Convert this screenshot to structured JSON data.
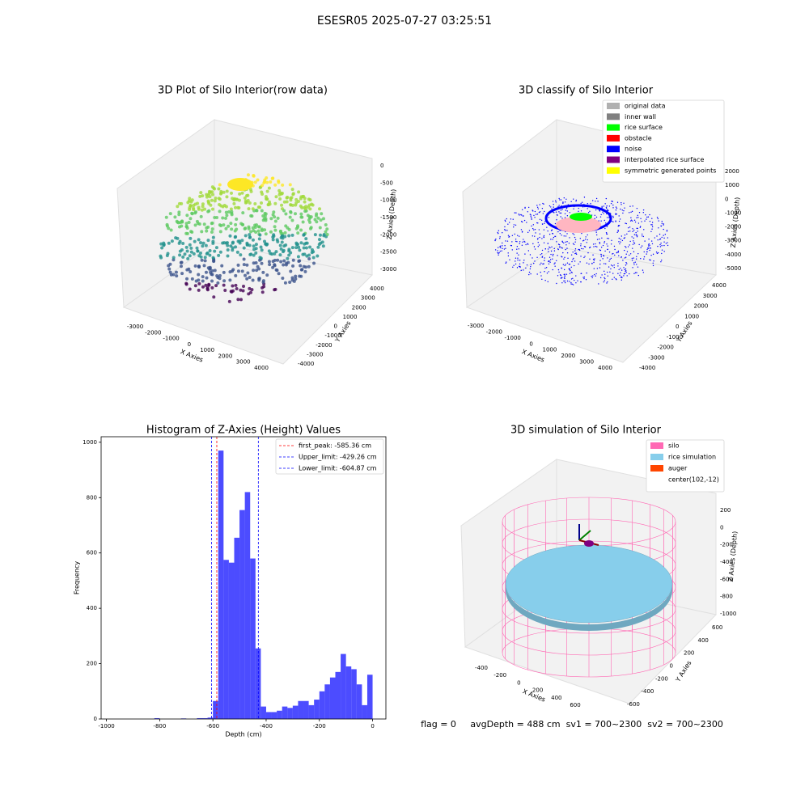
{
  "title": "ESESR05 2025-07-27 03:25:51",
  "chart_data": [
    {
      "type": "scatter3d",
      "title": "3D Plot of Silo Interior(row data)",
      "xlabel": "X Axies",
      "ylabel": "Y Axies",
      "zlabel": "Z Axies (Depth)",
      "xlim": [
        -3000,
        4000
      ],
      "xticks": [
        -3000,
        -2000,
        -1000,
        0,
        1000,
        2000,
        3000,
        4000
      ],
      "ylim": [
        -4000,
        4000
      ],
      "yticks": [
        -4000,
        -3000,
        -2000,
        -1000,
        0,
        1000,
        2000,
        3000,
        4000
      ],
      "zlim": [
        -3000,
        0
      ],
      "zticks": [
        -3000,
        -2500,
        -2000,
        -1500,
        -1000,
        -500,
        0
      ]
    },
    {
      "type": "scatter3d",
      "title": "3D classify of Silo Interior",
      "xlabel": "X Axies",
      "ylabel": "Y Axies",
      "zlabel": "Z Axies (Depth)",
      "xlim": [
        -3000,
        4000
      ],
      "xticks": [
        -3000,
        -2000,
        -1000,
        0,
        1000,
        2000,
        3000,
        4000
      ],
      "ylim": [
        -4000,
        4000
      ],
      "yticks": [
        -4000,
        -3000,
        -2000,
        -1000,
        0,
        1000,
        2000,
        3000,
        4000
      ],
      "zlim": [
        -5000,
        2000
      ],
      "zticks": [
        -5000,
        -4000,
        -3000,
        -2000,
        -1000,
        0,
        1000,
        2000
      ],
      "legend": [
        {
          "name": "original data",
          "color": "#b0b0b0"
        },
        {
          "name": "inner wall",
          "color": "#808080"
        },
        {
          "name": "rice surface",
          "color": "#00ff00"
        },
        {
          "name": "obstacle",
          "color": "#ff0000"
        },
        {
          "name": "noise",
          "color": "#0000ff"
        },
        {
          "name": "interpolated rice surface",
          "color": "#800080"
        },
        {
          "name": "symmetric generated points",
          "color": "#ffff00"
        }
      ]
    },
    {
      "type": "histogram",
      "title": "Histogram of Z-Axies (Height) Values",
      "xlabel": "Depth (cm)",
      "ylabel": "Frequency",
      "color": "#0000ff",
      "alpha": 0.7,
      "bins": [
        -1000,
        -980,
        -960,
        -940,
        -920,
        -900,
        -880,
        -860,
        -840,
        -820,
        -800,
        -780,
        -760,
        -740,
        -720,
        -700,
        -680,
        -660,
        -640,
        -620,
        -600,
        -580,
        -560,
        -540,
        -520,
        -500,
        -480,
        -460,
        -440,
        -420,
        -400,
        -380,
        -360,
        -340,
        -320,
        -300,
        -280,
        -260,
        -240,
        -220,
        -200,
        -180,
        -160,
        -140,
        -120,
        -100,
        -80,
        -60,
        -40,
        -20,
        0
      ],
      "counts": [
        0,
        0,
        0,
        0,
        0,
        0,
        0,
        0,
        0,
        3,
        0,
        0,
        0,
        0,
        2,
        0,
        0,
        3,
        3,
        5,
        65,
        970,
        575,
        565,
        655,
        755,
        820,
        580,
        255,
        45,
        25,
        25,
        30,
        45,
        40,
        48,
        65,
        65,
        50,
        70,
        100,
        125,
        150,
        170,
        235,
        190,
        180,
        125,
        50,
        160
      ],
      "xlim": [
        -1020,
        50
      ],
      "xticks": [
        -1000,
        -800,
        -600,
        -400,
        -200,
        0
      ],
      "ylim": [
        0,
        1020
      ],
      "yticks": [
        0,
        200,
        400,
        600,
        800,
        1000
      ],
      "vlines": [
        {
          "label": "first_peak: -585.36 cm",
          "value": -585.36,
          "color": "#ff0000"
        },
        {
          "label": "Upper_limit: -429.26 cm",
          "value": -429.26,
          "color": "#0000ff"
        },
        {
          "label": "Lower_limit: -604.87 cm",
          "value": -604.87,
          "color": "#0000ff"
        }
      ]
    },
    {
      "type": "surface3d",
      "title": "3D simulation of Silo Interior",
      "xlabel": "X Axies",
      "ylabel": "Y Axies",
      "zlabel": "Z Axies (Depth)",
      "xlim": [
        -400,
        600
      ],
      "xticks": [
        -400,
        -200,
        0,
        200,
        400,
        600
      ],
      "ylim": [
        -600,
        600
      ],
      "yticks": [
        -600,
        -400,
        -200,
        0,
        200,
        400,
        600
      ],
      "zlim": [
        -1000,
        200
      ],
      "zticks": [
        -1000,
        -800,
        -600,
        -400,
        -200,
        0,
        200
      ],
      "legend": [
        {
          "name": "silo",
          "color": "#ff69b4"
        },
        {
          "name": "rice simulation",
          "color": "#87ceeb"
        },
        {
          "name": "auger",
          "color": "#ff4500"
        },
        {
          "name": "center(102,-12)",
          "color": "#ffffff"
        }
      ],
      "annotation": "flag = 0     avgDepth = 488 cm  sv1 = 700~2300  sv2 = 700~2300"
    }
  ]
}
